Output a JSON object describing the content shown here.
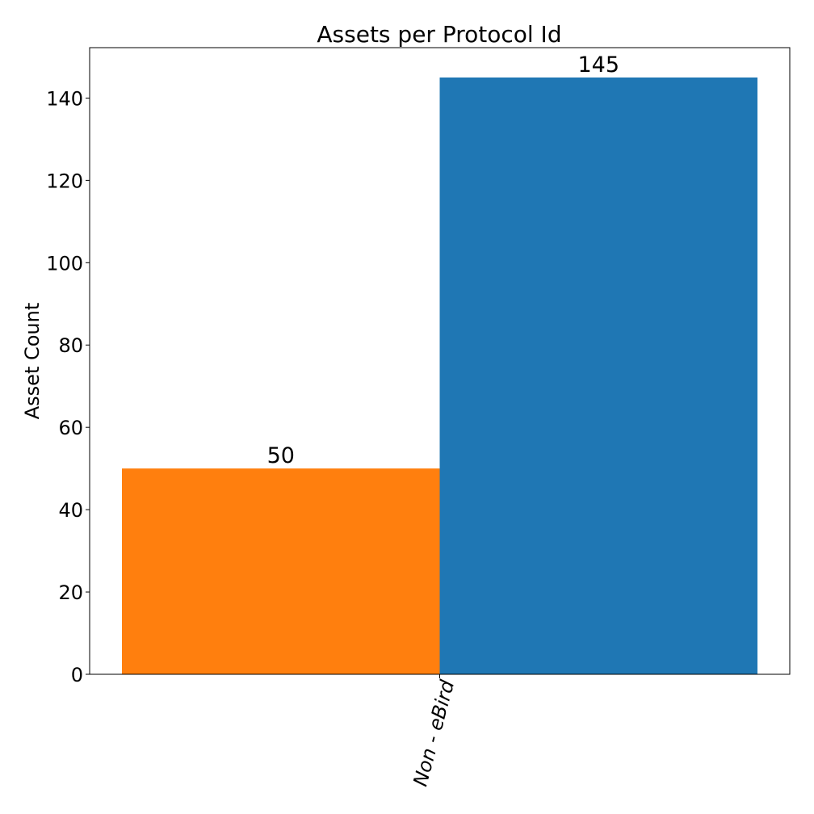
{
  "chart_data": {
    "type": "bar",
    "title": "Assets per Protocol Id",
    "xlabel": "",
    "ylabel": "Asset Count",
    "categories": [
      "Non - eBird"
    ],
    "bars": [
      {
        "value": 50,
        "label": "50",
        "color": "#ff7f0e"
      },
      {
        "value": 145,
        "label": "145",
        "color": "#1f77b4"
      }
    ],
    "ylim": [
      0,
      152.25
    ],
    "yticks": [
      0,
      20,
      40,
      60,
      80,
      100,
      120,
      140
    ],
    "grid": false
  }
}
